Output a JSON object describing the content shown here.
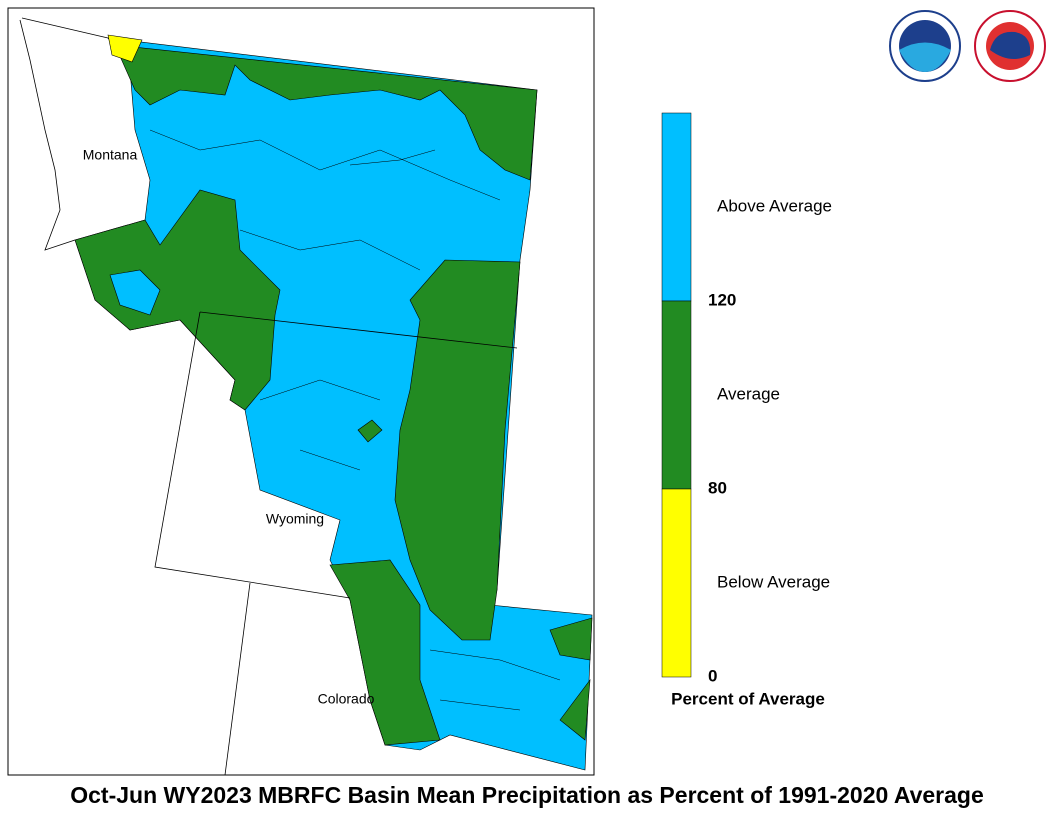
{
  "title": "Oct-Jun WY2023 MBRFC Basin Mean Precipitation as Percent of 1991-2020 Average",
  "map": {
    "labels": [
      "Montana",
      "Wyoming",
      "Colorado"
    ]
  },
  "legend": {
    "title": "Percent of Average",
    "bands": [
      {
        "label": "Above Average",
        "color": "#00bfff"
      },
      {
        "label": "Average",
        "color": "#228b22"
      },
      {
        "label": "Below Average",
        "color": "#ffff00"
      }
    ],
    "ticks": [
      120,
      80,
      0
    ]
  }
}
